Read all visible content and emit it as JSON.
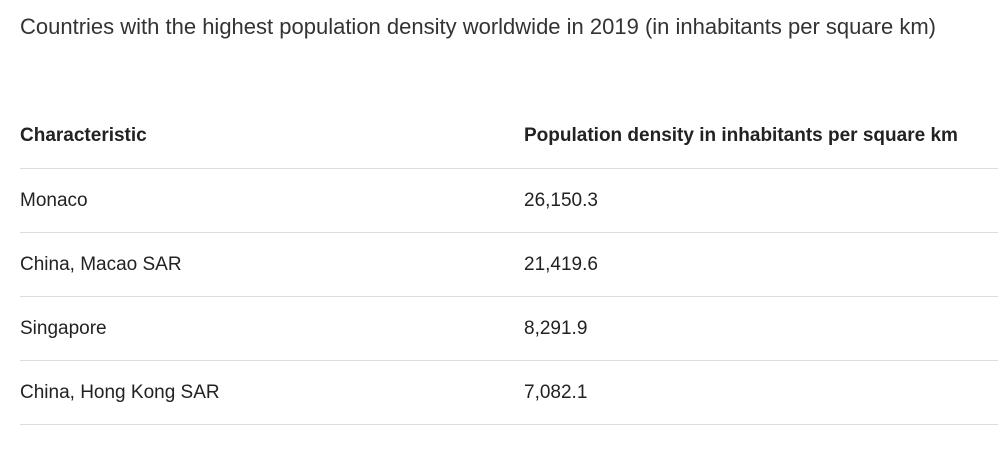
{
  "title": "Countries with the highest population density worldwide in 2019 (in inhabitants per square km)",
  "headers": [
    "Characteristic",
    "Population density in inhabitants per square km"
  ],
  "rows": [
    [
      "Monaco",
      "26,150.3"
    ],
    [
      "China, Macao SAR",
      "21,419.6"
    ],
    [
      "Singapore",
      "8,291.9"
    ],
    [
      "China, Hong Kong SAR",
      "7,082.1"
    ]
  ]
}
